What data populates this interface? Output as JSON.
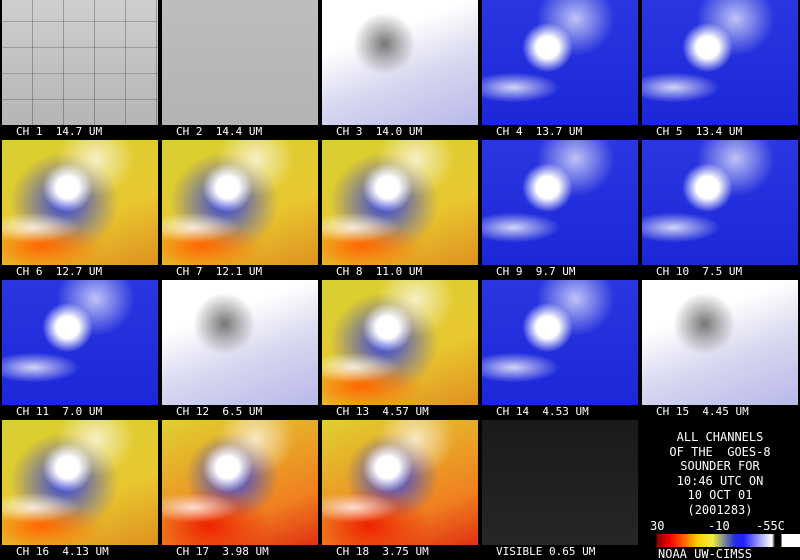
{
  "panels": [
    "CH 1  14.7 UM",
    "CH 2  14.4 UM",
    "CH 3  14.0 UM",
    "CH 4  13.7 UM",
    "CH 5  13.4 UM",
    "CH 6  12.7 UM",
    "CH 7  12.1 UM",
    "CH 8  11.0 UM",
    "CH 9  9.7 UM",
    "CH 10  7.5 UM",
    "CH 11  7.0 UM",
    "CH 12  6.5 UM",
    "CH 13  4.57 UM",
    "CH 14  4.53 UM",
    "CH 15  4.45 UM",
    "CH 16  4.13 UM",
    "CH 17  3.98 UM",
    "CH 18  3.75 UM",
    "VISIBLE 0.65 UM"
  ],
  "info": [
    "ALL CHANNELS",
    "OF THE  GOES-8",
    "SOUNDER FOR",
    "10:46 UTC ON",
    "10 OCT 01",
    "(2001283)"
  ],
  "colorbar_labels": [
    "30",
    "-10",
    "-55C"
  ],
  "credit": "NOAA UW-CIMSS"
}
